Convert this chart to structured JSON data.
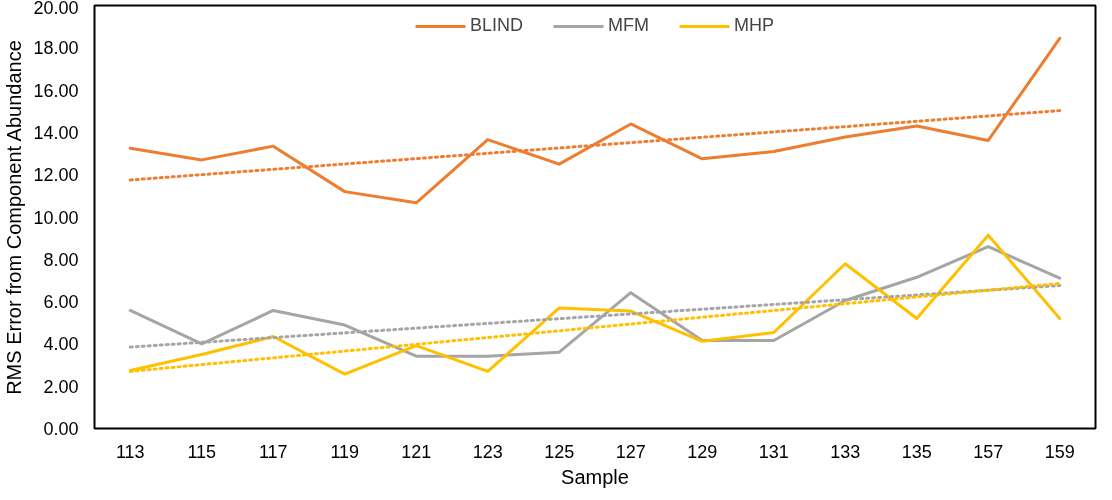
{
  "chart_data": {
    "type": "line",
    "xlabel": "Sample",
    "ylabel": "RMS Error from Component Abundance",
    "categories": [
      "113",
      "115",
      "117",
      "119",
      "121",
      "123",
      "125",
      "127",
      "129",
      "131",
      "133",
      "135",
      "157",
      "159"
    ],
    "series": [
      {
        "name": "BLIND",
        "color": "#ed7d31",
        "values": [
          13.25,
          12.7,
          13.35,
          11.2,
          10.67,
          13.66,
          12.5,
          14.4,
          12.75,
          13.1,
          13.78,
          14.3,
          13.62,
          18.45
        ]
      },
      {
        "name": "MFM",
        "color": "#a5a5a5",
        "values": [
          5.58,
          4.0,
          5.58,
          4.89,
          3.42,
          3.42,
          3.61,
          6.42,
          4.16,
          4.16,
          6.05,
          7.15,
          8.6,
          7.11
        ]
      },
      {
        "name": "MHP",
        "color": "#ffc000",
        "values": [
          2.74,
          3.5,
          4.35,
          2.57,
          3.92,
          2.7,
          5.7,
          5.55,
          4.12,
          4.54,
          7.79,
          5.2,
          9.14,
          5.2
        ]
      },
      {
        "color": "#ed7d31",
        "line_style": "dotted",
        "x": [
          "113",
          "159"
        ],
        "values": [
          11.75,
          15.03
        ]
      },
      {
        "color": "#a5a5a5",
        "line_style": "dotted",
        "x": [
          "113",
          "159"
        ],
        "values": [
          3.85,
          6.76
        ]
      },
      {
        "color": "#ffc000",
        "line_style": "dotted",
        "x": [
          "113",
          "159"
        ],
        "values": [
          2.7,
          6.86
        ]
      }
    ],
    "ylim": [
      0,
      20
    ],
    "yticks": [
      {
        "value": 0,
        "label": "0.00"
      },
      {
        "value": 2,
        "label": "2.00"
      },
      {
        "value": 4,
        "label": "4.00"
      },
      {
        "value": 6,
        "label": "6.00"
      },
      {
        "value": 8,
        "label": "8.00"
      },
      {
        "value": 10,
        "label": "10.00"
      },
      {
        "value": 12,
        "label": "12.00"
      },
      {
        "value": 14,
        "label": "14.00"
      },
      {
        "value": 16,
        "label": "16.00"
      },
      {
        "value": 18,
        "label": "18.00"
      },
      {
        "value": 20,
        "label": "20.00"
      }
    ],
    "legend": "top",
    "line_style": "solid"
  }
}
